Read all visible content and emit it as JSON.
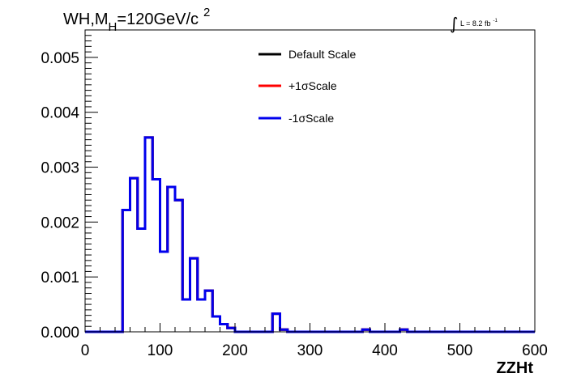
{
  "chart_data": {
    "type": "line",
    "title_parts": {
      "prefix": "WH,M",
      "sub": "H",
      "middle": "=120GeV/c",
      "sup": "2"
    },
    "lumi": {
      "integral": "∫",
      "text": "L = 8.2 fb",
      "sup": "-1"
    },
    "xlabel": "ZZHt",
    "ylabel": "",
    "xlim": [
      0,
      600
    ],
    "ylim": [
      0,
      0.0055
    ],
    "x_ticks": [
      0,
      100,
      200,
      300,
      400,
      500,
      600
    ],
    "y_ticks": [
      0.0,
      0.001,
      0.002,
      0.003,
      0.004,
      0.005
    ],
    "y_tick_labels": [
      "0.000",
      "0.001",
      "0.002",
      "0.003",
      "0.004",
      "0.005"
    ],
    "grid": false,
    "legend_position": "top-center",
    "bin_edges": [
      0,
      10,
      20,
      30,
      40,
      50,
      60,
      70,
      80,
      90,
      100,
      110,
      120,
      130,
      140,
      150,
      160,
      170,
      180,
      190,
      200,
      210,
      220,
      230,
      240,
      250,
      260,
      270,
      280,
      290,
      300,
      310,
      320,
      330,
      340,
      350,
      360,
      370,
      380,
      390,
      400,
      410,
      420,
      430,
      440,
      450,
      460,
      470,
      480,
      490,
      500,
      510,
      520,
      530,
      540,
      550,
      560,
      570,
      580,
      590,
      600
    ],
    "series": [
      {
        "name": "Default Scale",
        "color": "#000000",
        "values": [
          0,
          0,
          0,
          0,
          0,
          0.00222,
          0.0028,
          0.00188,
          0.00354,
          0.00278,
          0.00146,
          0.00264,
          0.0024,
          0.00059,
          0.00134,
          0.00059,
          0.00075,
          0.00028,
          0.00014,
          7e-05,
          0.0,
          0.0,
          0,
          0,
          0,
          0.00033,
          4e-05,
          0,
          0,
          0,
          0,
          0,
          0,
          0,
          0,
          0,
          0,
          4e-05,
          0,
          0,
          0,
          0,
          4e-05,
          0,
          0,
          0,
          0,
          0,
          0,
          0,
          0,
          0,
          0,
          0,
          0,
          0,
          0,
          0,
          0,
          0
        ]
      },
      {
        "name": "+1σScale",
        "color": "#ff0000",
        "values": [
          0,
          0,
          0,
          0,
          0,
          0.00222,
          0.0028,
          0.00188,
          0.00354,
          0.00278,
          0.00146,
          0.00264,
          0.0024,
          0.00059,
          0.00134,
          0.00059,
          0.00075,
          0.00028,
          0.00014,
          7e-05,
          0.0,
          0.0,
          0,
          0,
          0,
          0.00033,
          4e-05,
          0,
          0,
          0,
          0,
          0,
          0,
          0,
          0,
          0,
          0,
          4e-05,
          0,
          0,
          0,
          0,
          4e-05,
          0,
          0,
          0,
          0,
          0,
          0,
          0,
          0,
          0,
          0,
          0,
          0,
          0,
          0,
          0,
          0,
          0
        ]
      },
      {
        "name": "-1σScale",
        "color": "#0000ee",
        "values": [
          0,
          0,
          0,
          0,
          0,
          0.00222,
          0.0028,
          0.00188,
          0.00354,
          0.00278,
          0.00146,
          0.00264,
          0.0024,
          0.00059,
          0.00134,
          0.00059,
          0.00075,
          0.00028,
          0.00014,
          7e-05,
          0.0,
          0.0,
          0,
          0,
          0,
          0.00033,
          4e-05,
          0,
          0,
          0,
          0,
          0,
          0,
          0,
          0,
          0,
          0,
          4e-05,
          0,
          0,
          0,
          0,
          4e-05,
          0,
          0,
          0,
          0,
          0,
          0,
          0,
          0,
          0,
          0,
          0,
          0,
          0,
          0,
          0,
          0,
          0
        ]
      }
    ]
  }
}
